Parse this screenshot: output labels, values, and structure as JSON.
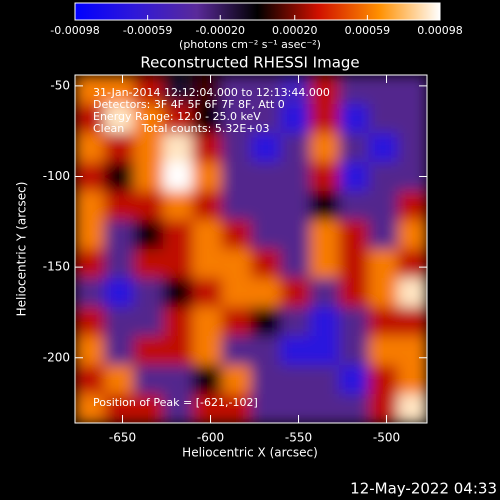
{
  "chart_data": {
    "type": "heatmap",
    "title": "Reconstructed RHESSI Image",
    "xlabel": "Heliocentric X (arcsec)",
    "ylabel": "Heliocentric Y (arcsec)",
    "xlim": [
      -677,
      -477
    ],
    "xticks": [
      -650,
      -600,
      -550,
      -500
    ],
    "ylim": [
      -236,
      -44
    ],
    "yticks": [
      -50,
      -100,
      -150,
      -200
    ],
    "zlim": [
      -0.00098,
      0.00098
    ],
    "zticks": [
      -0.00098,
      -0.00059,
      {
        "value": -0.0002,
        "label": "-0.00020"
      },
      {
        "value": 0.0002,
        "label": "0.00020"
      },
      0.00059,
      0.00098
    ],
    "zlabel": "(photons cm⁻² s⁻¹ asec⁻²)",
    "colorscale": [
      "#0000ff",
      "#3018d8",
      "#5a2a9a",
      "#000000",
      "#d01000",
      "#ff9000",
      "#ffffff"
    ],
    "z": [
      [
        0.0006,
        0.0006,
        0.0003,
        -0.0001,
        0.0001,
        -0.0003,
        -0.0003,
        -0.0005,
        0.0003,
        -0.0003,
        -0.0003,
        -0.0003
      ],
      [
        0.0003,
        0.0009,
        0.0006,
        0.0003,
        0,
        -0.0003,
        -0.0003,
        -0.0007,
        0.0003,
        -0.0007,
        -0.0003,
        -0.0003
      ],
      [
        0.0006,
        0.0003,
        0.0006,
        0.0009,
        0.0003,
        -0.0003,
        -0.0007,
        -0.0003,
        0.0006,
        -0.0003,
        -0.0007,
        -0.0003
      ],
      [
        0.0003,
        0,
        0.0006,
        0.00098,
        0.0006,
        -0.0003,
        -0.0003,
        -0.0003,
        0.0003,
        -0.0007,
        -0.0003,
        -0.0003
      ],
      [
        0.0006,
        0.0003,
        0.0003,
        0.0006,
        0.0003,
        -0.0003,
        -0.0003,
        -0.0003,
        0,
        -0.0003,
        -0.0003,
        0.0003
      ],
      [
        0.0006,
        -0.0003,
        0,
        0.0003,
        0.0006,
        0.0003,
        -0.0003,
        -0.0003,
        0.0006,
        0.0003,
        -0.0003,
        0.0006
      ],
      [
        0.0003,
        -0.0003,
        0.0003,
        0.0003,
        0.0006,
        0.0006,
        0.0003,
        -0.0003,
        0.0006,
        0.0003,
        0.0006,
        0.0003
      ],
      [
        -0.0003,
        -0.0007,
        -0.0003,
        0,
        0.0003,
        0.0006,
        0.0006,
        0.0003,
        -0.0003,
        0.0003,
        0.0006,
        0.0009
      ],
      [
        0.0003,
        -0.0003,
        -0.0003,
        0.0003,
        0.0006,
        0.0003,
        0,
        -0.0003,
        -0.0007,
        -0.0003,
        0.0003,
        0.0003
      ],
      [
        0.0006,
        -0.0003,
        0.0003,
        0.0003,
        0.0006,
        -0.0003,
        -0.0003,
        -0.0007,
        -0.0007,
        -0.0003,
        0.0006,
        0.0006
      ],
      [
        0.0003,
        0.0006,
        -0.0003,
        -0.0003,
        0,
        0.0006,
        -0.0003,
        -0.0003,
        -0.0003,
        -0.0007,
        0.0003,
        0.0006
      ],
      [
        0.0006,
        0.0003,
        0.0003,
        -0.0003,
        0.0003,
        0.0003,
        -0.0003,
        -0.0003,
        -0.0003,
        -0.0003,
        0.0003,
        0.0009
      ]
    ],
    "annotations": [
      "31-Jan-2014 12:12:04.000 to 12:13:44.000",
      "Detectors: 3F 4F 5F 6F 7F 8F, Att 0",
      "Energy Range: 12.0 - 25.0 keV",
      "Clean     Total counts: 5.32E+03"
    ],
    "peak_label": "Position of Peak = [-621,-102]",
    "footer": "12-May-2022 04:33"
  }
}
